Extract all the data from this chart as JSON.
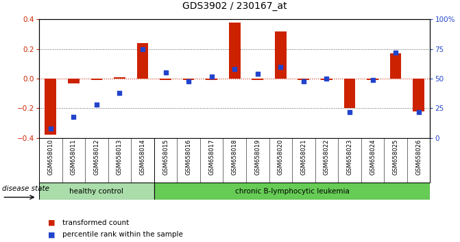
{
  "title": "GDS3902 / 230167_at",
  "samples": [
    "GSM658010",
    "GSM658011",
    "GSM658012",
    "GSM658013",
    "GSM658014",
    "GSM658015",
    "GSM658016",
    "GSM658017",
    "GSM658018",
    "GSM658019",
    "GSM658020",
    "GSM658021",
    "GSM658022",
    "GSM658023",
    "GSM658024",
    "GSM658025",
    "GSM658026"
  ],
  "red_bars": [
    -0.38,
    -0.03,
    -0.01,
    0.01,
    0.24,
    -0.01,
    -0.01,
    -0.01,
    0.38,
    -0.01,
    0.32,
    -0.01,
    -0.01,
    -0.2,
    -0.01,
    0.17,
    -0.22
  ],
  "blue_dots": [
    8,
    18,
    28,
    38,
    75,
    55,
    48,
    52,
    58,
    54,
    60,
    48,
    50,
    22,
    49,
    72,
    22
  ],
  "healthy_count": 5,
  "ylim": [
    -0.4,
    0.4
  ],
  "y2lim": [
    0,
    100
  ],
  "yticks": [
    -0.4,
    -0.2,
    0.0,
    0.2,
    0.4
  ],
  "y2ticks": [
    0,
    25,
    50,
    75,
    100
  ],
  "red_color": "#CC2200",
  "blue_color": "#2244CC",
  "group_colors": [
    "#AADDAA",
    "#66CC55"
  ],
  "group_labels": [
    "healthy control",
    "chronic B-lymphocytic leukemia"
  ],
  "legend_labels": [
    "transformed count",
    "percentile rank within the sample"
  ],
  "disease_state_label": "disease state",
  "bar_width": 0.5
}
